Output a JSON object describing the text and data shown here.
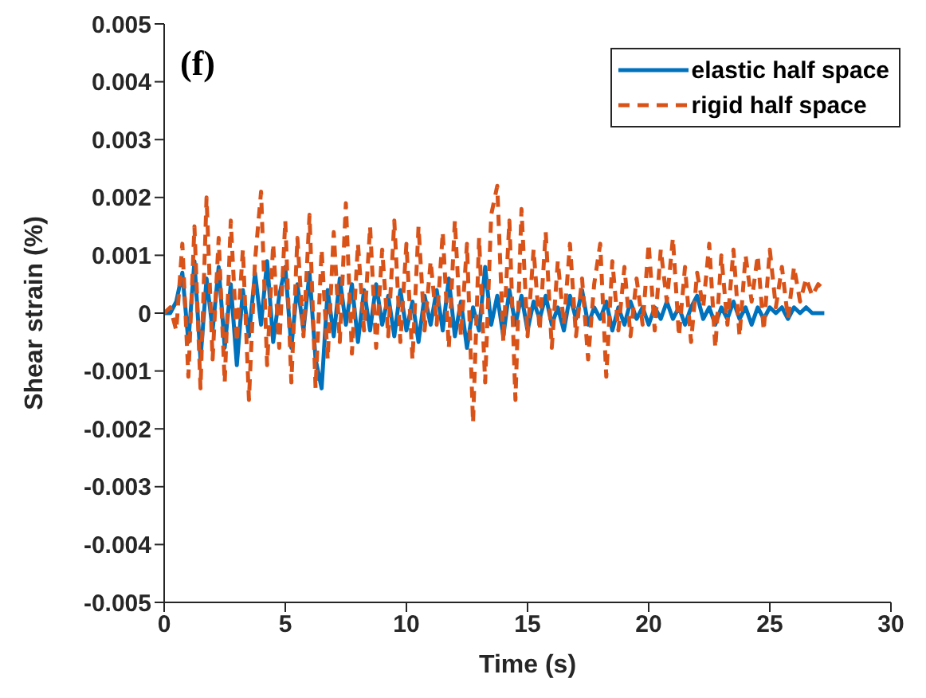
{
  "chart_data": {
    "type": "line",
    "xlabel": "Time (s)",
    "ylabel": "Shear strain (%)",
    "annotations": [
      "(f)"
    ],
    "x": [
      0,
      0.25,
      0.5,
      0.75,
      1,
      1.25,
      1.5,
      1.75,
      2,
      2.25,
      2.5,
      2.75,
      3,
      3.25,
      3.5,
      3.75,
      4,
      4.25,
      4.5,
      4.75,
      5,
      5.25,
      5.5,
      5.75,
      6,
      6.25,
      6.5,
      6.75,
      7,
      7.25,
      7.5,
      7.75,
      8,
      8.25,
      8.5,
      8.75,
      9,
      9.25,
      9.5,
      9.75,
      10,
      10.25,
      10.5,
      10.75,
      11,
      11.25,
      11.5,
      11.75,
      12,
      12.25,
      12.5,
      12.75,
      13,
      13.25,
      13.5,
      13.75,
      14,
      14.25,
      14.5,
      14.75,
      15,
      15.25,
      15.5,
      15.75,
      16,
      16.25,
      16.5,
      16.75,
      17,
      17.25,
      17.5,
      17.75,
      18,
      18.25,
      18.5,
      18.75,
      19,
      19.25,
      19.5,
      19.75,
      20,
      20.25,
      20.5,
      20.75,
      21,
      21.25,
      21.5,
      21.75,
      22,
      22.25,
      22.5,
      22.75,
      23,
      23.25,
      23.5,
      23.75,
      24,
      24.25,
      24.5,
      24.75,
      25,
      25.25,
      25.5,
      25.75,
      26,
      26.25,
      26.5,
      26.75,
      27,
      27.25
    ],
    "series": [
      {
        "name": "elastic half space",
        "color": "#0072bd",
        "line_style": "solid",
        "values": [
          0,
          0,
          0.0002,
          0.0007,
          -0.0005,
          0.0009,
          -0.0008,
          0.0006,
          -0.0003,
          0.0008,
          -0.0006,
          0.0005,
          -0.0009,
          0.0004,
          -0.0004,
          0.0007,
          -0.0002,
          0.0009,
          -0.0005,
          0.0003,
          0.0008,
          -0.0006,
          0.0005,
          -0.0003,
          0.0007,
          -0.0008,
          -0.0013,
          0.0004,
          -0.0004,
          0.0006,
          -0.0002,
          0.0005,
          -0.0005,
          0.0004,
          -0.0003,
          0.0005,
          -0.0002,
          0.0003,
          -0.0004,
          0.0004,
          -0.0003,
          0.0002,
          -0.0005,
          0.0003,
          -0.0002,
          0.0004,
          -0.0003,
          0.0006,
          -0.0004,
          0.0002,
          -0.0006,
          0.0001,
          -0.0003,
          0.0008,
          -0.0002,
          0.0003,
          -0.0004,
          0.0004,
          -0.0002,
          0.0003,
          -0.0003,
          0.0002,
          -0.0001,
          0.0003,
          -0.0002,
          0.0001,
          -0.0003,
          0.0003,
          -0.0001,
          0.0004,
          -0.0002,
          0.0001,
          -0.0001,
          0.0002,
          -0.0003,
          0.0001,
          -0.0002,
          0.0002,
          -0.0001,
          0.0001,
          -0.0002,
          0.0001,
          -0.0001,
          0.0002,
          -0.0001,
          0.0001,
          -0.0002,
          0.0001,
          0.0003,
          -0.0001,
          0.0001,
          -0.0002,
          0.0001,
          -0.0001,
          0.0002,
          -0.0001,
          0.0001,
          -0.0002,
          0.0001,
          -0.0001,
          0.0001,
          0,
          0.0001,
          -0.0001,
          0.0001,
          0,
          0.0001,
          0,
          0,
          0
        ]
      },
      {
        "name": "rigid half space",
        "color": "#d95319",
        "line_style": "dashed",
        "values": [
          0,
          0.0001,
          -0.0003,
          0.0012,
          -0.0011,
          0.0015,
          -0.0013,
          0.002,
          -0.0008,
          0.0013,
          -0.0012,
          0.0016,
          -0.0005,
          0.0011,
          -0.0015,
          0.0009,
          0.0021,
          -0.0009,
          0.0012,
          -0.0006,
          0.0016,
          -0.0012,
          0.0013,
          -0.0004,
          0.0017,
          -0.0013,
          0.0011,
          -0.0008,
          0.0014,
          -0.0005,
          0.0019,
          -0.0007,
          0.0012,
          -0.0003,
          0.0015,
          -0.0006,
          0.0011,
          -0.0004,
          0.0016,
          -0.0005,
          0.0012,
          -0.0008,
          0.0015,
          -0.0003,
          0.0009,
          -0.0002,
          0.0014,
          -0.0006,
          0.0016,
          -0.0004,
          0.0012,
          -0.0019,
          0.0013,
          -0.0012,
          0.0017,
          0.0022,
          -0.0005,
          0.0016,
          -0.0015,
          0.0018,
          -0.0004,
          0.0011,
          -0.0003,
          0.0014,
          -0.0006,
          0.0009,
          -0.0002,
          0.0012,
          -0.0004,
          0.0006,
          -0.0008,
          0.0005,
          0.0012,
          -0.0011,
          0.0009,
          -0.0003,
          0.0008,
          -0.0004,
          0.0006,
          -0.0002,
          0.0012,
          -0.0003,
          0.0011,
          0.0002,
          0.0013,
          -0.0004,
          0.0008,
          -0.0005,
          0.0007,
          0.0001,
          0.0012,
          -0.0006,
          0.001,
          -0.0002,
          0.0011,
          -0.0004,
          0.001,
          0.0002,
          0.001,
          -0.0003,
          0.0011,
          0.0001,
          0.0008,
          -0.0001,
          0.0008,
          0.0002,
          0.0006,
          0.0003,
          0.0005,
          0.0004
        ]
      }
    ],
    "xlim": [
      0,
      30
    ],
    "xticks": [
      0,
      5,
      10,
      15,
      20,
      25,
      30
    ],
    "ylim": [
      -0.005,
      0.005
    ],
    "yticks": [
      -0.005,
      -0.004,
      -0.003,
      -0.002,
      -0.001,
      0,
      0.001,
      0.002,
      0.003,
      0.004,
      0.005
    ],
    "grid": false,
    "legend": "top right",
    "marker": "none"
  }
}
